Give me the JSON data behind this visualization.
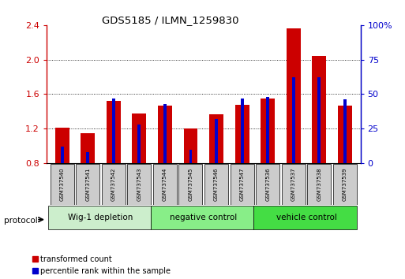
{
  "title": "GDS5185 / ILMN_1259830",
  "samples": [
    "GSM737540",
    "GSM737541",
    "GSM737542",
    "GSM737543",
    "GSM737544",
    "GSM737545",
    "GSM737546",
    "GSM737547",
    "GSM737536",
    "GSM737537",
    "GSM737538",
    "GSM737539"
  ],
  "red_values": [
    1.21,
    1.15,
    1.52,
    1.38,
    1.47,
    1.2,
    1.37,
    1.48,
    1.55,
    2.36,
    2.04,
    1.47
  ],
  "blue_values": [
    0.12,
    0.08,
    0.47,
    0.28,
    0.43,
    0.1,
    0.32,
    0.47,
    0.48,
    0.62,
    0.62,
    0.46
  ],
  "groups": [
    {
      "label": "Wig-1 depletion",
      "start": 0,
      "end": 4
    },
    {
      "label": "negative control",
      "start": 4,
      "end": 8
    },
    {
      "label": "vehicle control",
      "start": 8,
      "end": 12
    }
  ],
  "protocol_label": "protocol",
  "left_ylim": [
    0.8,
    2.4
  ],
  "left_yticks": [
    0.8,
    1.2,
    1.6,
    2.0,
    2.4
  ],
  "right_ylim": [
    0.0,
    1.0
  ],
  "right_yticks": [
    0.0,
    0.25,
    0.5,
    0.75,
    1.0
  ],
  "right_yticklabels": [
    "0",
    "25",
    "50",
    "75",
    "100%"
  ],
  "left_color": "#cc0000",
  "right_color": "#0000cc",
  "bar_width": 0.55,
  "blue_bar_width": 0.12,
  "grid_color": "#000000",
  "bg_color": "#ffffff",
  "legend_red_label": "transformed count",
  "legend_blue_label": "percentile rank within the sample",
  "group_bg_color": "#99ee99",
  "group_border_color": "#000000",
  "sample_box_color": "#cccccc",
  "group_colors": [
    "#cceecc",
    "#99ee99",
    "#44cc44"
  ]
}
